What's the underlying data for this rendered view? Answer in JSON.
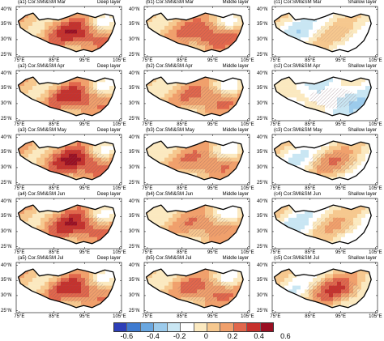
{
  "columns": [
    {
      "prefix": "a",
      "layer": "Deep layer"
    },
    {
      "prefix": "b",
      "layer": "Middle layer"
    },
    {
      "prefix": "c",
      "layer": "Shallow layer"
    }
  ],
  "rows": [
    {
      "month": "Mar",
      "intensity": [
        0.42,
        0.38,
        0.05
      ]
    },
    {
      "month": "Apr",
      "intensity": [
        0.4,
        0.32,
        -0.18
      ]
    },
    {
      "month": "May",
      "intensity": [
        0.45,
        0.3,
        0.18
      ]
    },
    {
      "month": "Jun",
      "intensity": [
        0.43,
        0.28,
        0.1
      ]
    },
    {
      "month": "Jul",
      "intensity": [
        0.4,
        0.33,
        0.3
      ]
    }
  ],
  "title_template": "({prefix}{n}) Cor.SMI&SM {month}",
  "lat_ticks": [
    "40°N",
    "35°N",
    "30°N",
    "25°N"
  ],
  "lon_ticks": [
    "75°E",
    "85°E",
    "95°E",
    "105°E"
  ],
  "colorbar": {
    "colors": [
      "#2d3fb8",
      "#3f7bd0",
      "#6aa7e0",
      "#9ccbec",
      "#c9e6f3",
      "#ffffff",
      "#fbe9c0",
      "#f6c88f",
      "#f0a06c",
      "#e1674c",
      "#c7312c",
      "#9a0f22"
    ],
    "labels": [
      "-0.6",
      "-0.4",
      "-0.2",
      "0",
      "0.2",
      "0.4",
      "0.6"
    ]
  }
}
